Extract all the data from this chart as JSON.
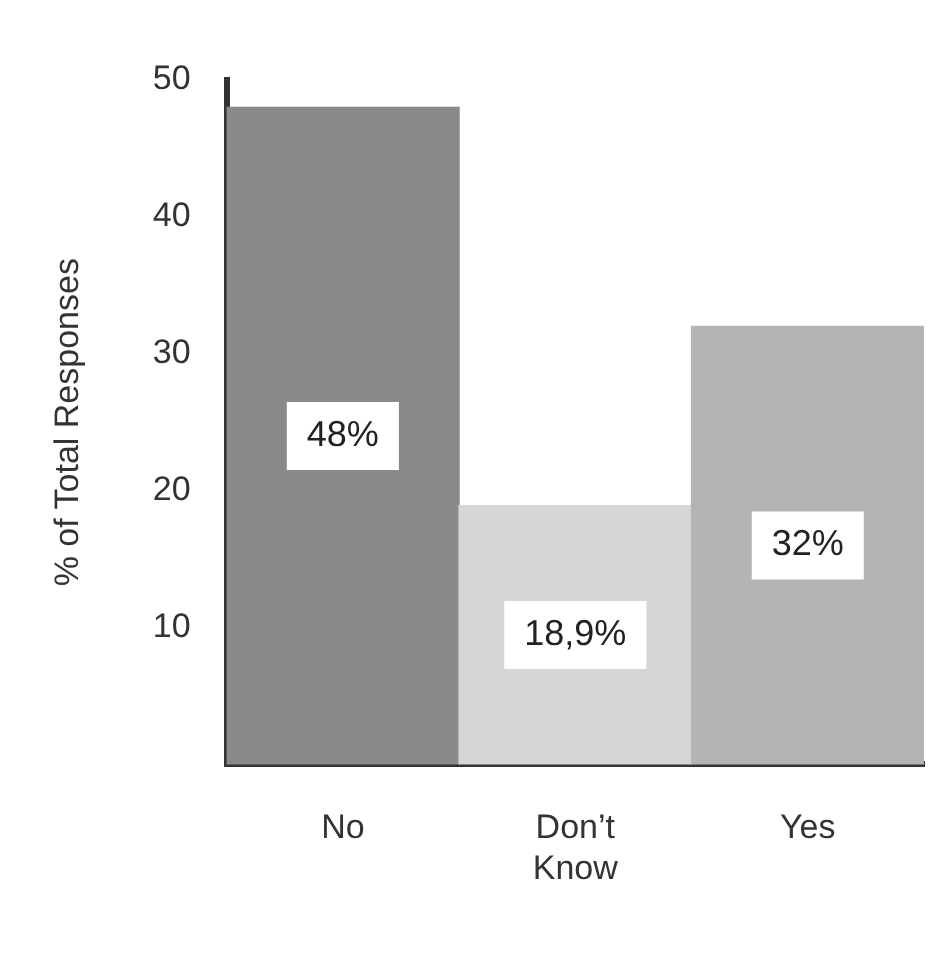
{
  "chart_data": {
    "type": "bar",
    "ylabel": "% of Total Responses",
    "categories": [
      "No",
      "Don’t Know",
      "Yes"
    ],
    "values": [
      48,
      18.9,
      32
    ],
    "colors": [
      "#8a8a8a",
      "#d6d6d6",
      "#b4b4b4"
    ],
    "value_labels": [
      "48%",
      "18,9%",
      "32%"
    ],
    "ylim": [
      0,
      50
    ],
    "yticks": [
      10,
      20,
      30,
      40,
      50
    ],
    "grid": false,
    "legend": false
  }
}
